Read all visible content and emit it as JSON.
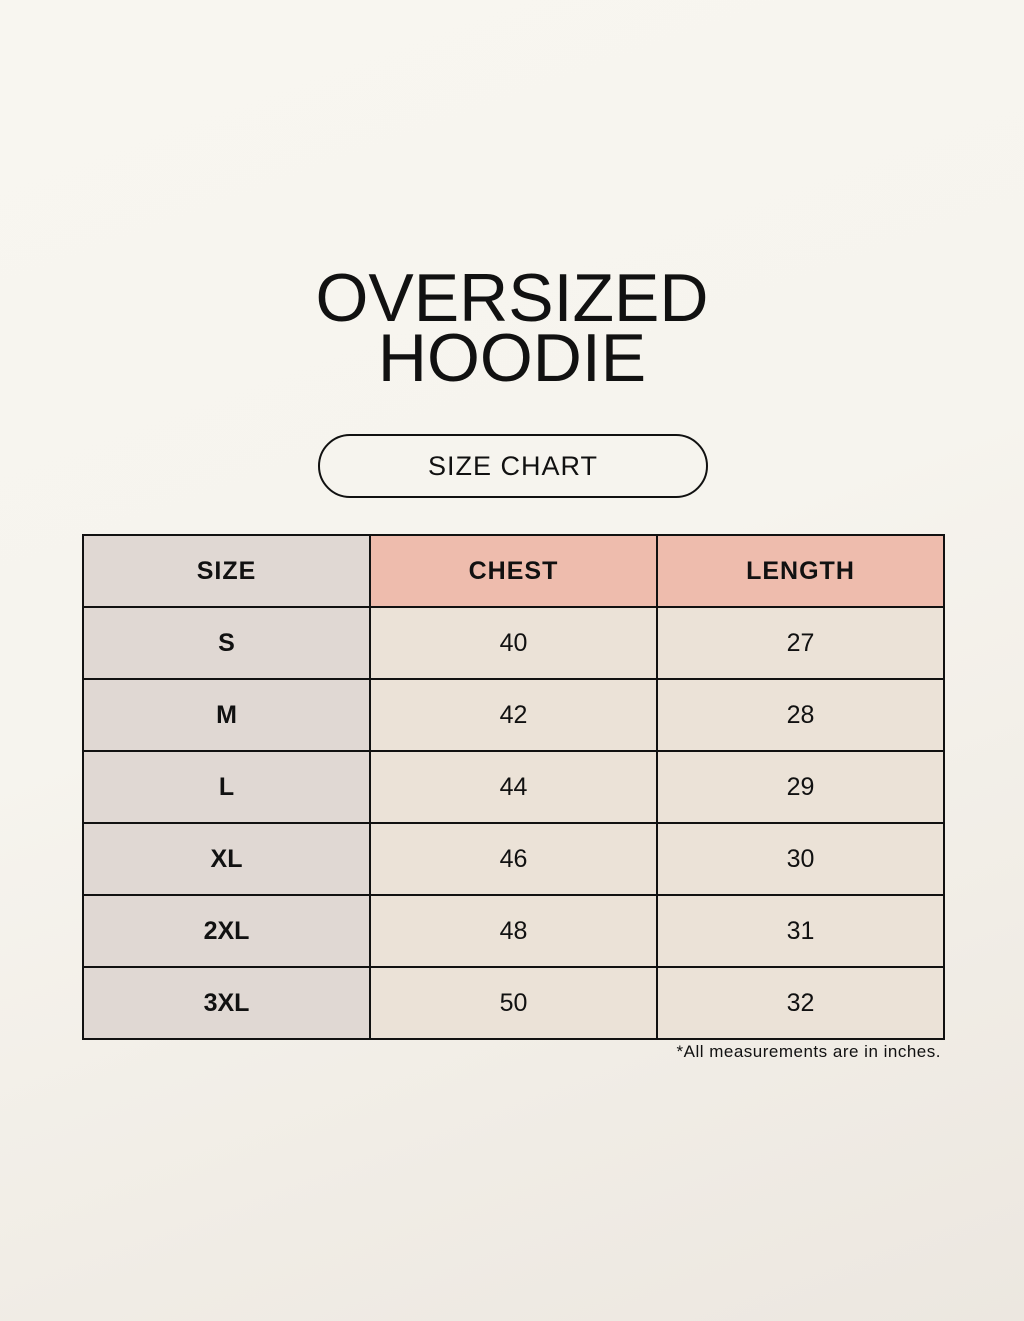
{
  "title": {
    "line1": "OVERSIZED",
    "line2": "HOODIE"
  },
  "subtitle": "SIZE CHART",
  "table": {
    "headers": [
      "SIZE",
      "CHEST",
      "LENGTH"
    ],
    "rows": [
      [
        "S",
        "40",
        "27"
      ],
      [
        "M",
        "42",
        "28"
      ],
      [
        "L",
        "44",
        "29"
      ],
      [
        "XL",
        "46",
        "30"
      ],
      [
        "2XL",
        "48",
        "31"
      ],
      [
        "3XL",
        "50",
        "32"
      ]
    ]
  },
  "note": "*All measurements are in inches.",
  "colors": {
    "size_column": "#e0d8d3",
    "header_accent": "#eebcad",
    "cell": "#ebe2d7",
    "background": "#f7f5ef"
  }
}
